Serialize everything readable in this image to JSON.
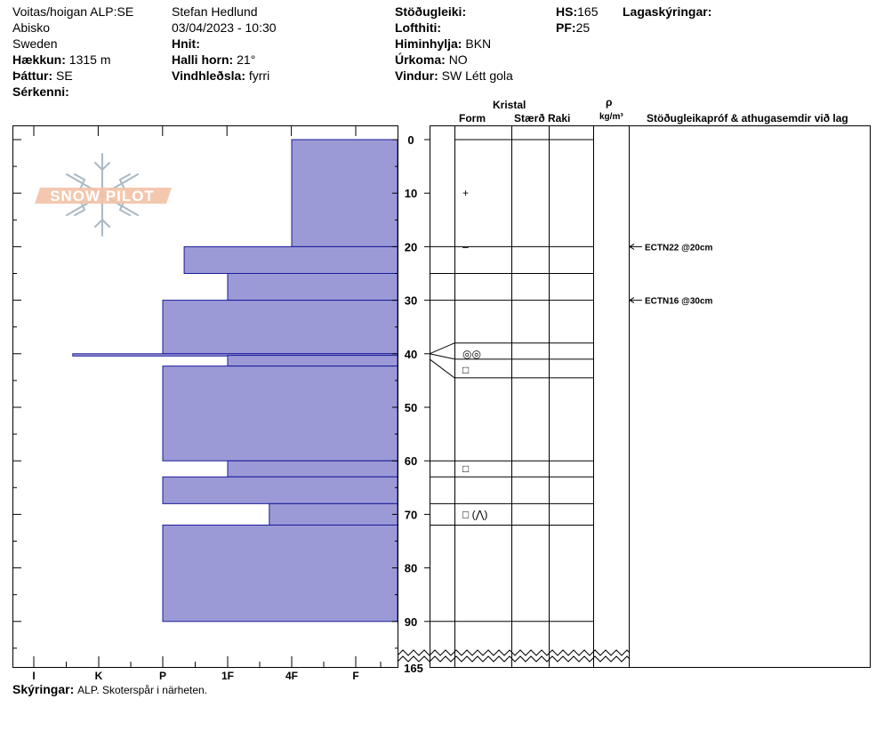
{
  "header": {
    "location": "Voitas/hoigan ALP:SE",
    "place": "Abisko",
    "country": "Sweden",
    "elevation_label": "Hækkun:",
    "elevation_value": "1315 m",
    "aspect_label": "Þáttur:",
    "aspect_value": "SE",
    "features_label": "Sérkenni:",
    "observer": "Stefan Hedlund",
    "datetime": "03/04/2023 - 10:30",
    "coords_label": "Hnit:",
    "slope_label": "Halli horn:",
    "slope_value": "21°",
    "wind_loading_label": "Vindhleðsla:",
    "wind_loading_value": "fyrri",
    "stability_label": "Stöðugleiki:",
    "air_temp_label": "Lofthiti:",
    "sky_label": "Himinhylja:",
    "sky_value": "BKN",
    "precip_label": "Úrkoma:",
    "precip_value": "NO",
    "wind_label": "Vindur:",
    "wind_value": "SW Létt gola",
    "hs_label": "HS:",
    "hs_value": "165",
    "pf_label": "PF:",
    "pf_value": "25",
    "layer_notes_label": "Lagaskýringar:"
  },
  "columns": {
    "crystal": "Kristal",
    "form": "Form",
    "size": "Stærð",
    "moisture": "Raki",
    "rho": "ρ",
    "density_unit": "kg/m³",
    "tests": "Stöðugleikapróf & athugasemdir við lag"
  },
  "logo": {
    "text": "SNOW PILOT"
  },
  "hardness_ticks": [
    "I",
    "K",
    "P",
    "1F",
    "4F",
    "F"
  ],
  "depth_ticks": [
    "0",
    "10",
    "20",
    "30",
    "40",
    "50",
    "60",
    "70",
    "80",
    "90"
  ],
  "depth_total": "165",
  "profile": {
    "layers": [
      {
        "top": 0,
        "bottom": 20,
        "hardness": "4F",
        "hardness_index": 4
      },
      {
        "top": 20,
        "bottom": 25,
        "hardness": "P+",
        "hardness_index": 2.33
      },
      {
        "top": 25,
        "bottom": 30,
        "hardness": "1F",
        "hardness_index": 3
      },
      {
        "top": 30,
        "bottom": 40,
        "hardness": "P",
        "hardness_index": 2
      },
      {
        "top": 40,
        "bottom": 40.3,
        "hardness": "I",
        "hardness_index": 0.6
      },
      {
        "top": 40.3,
        "bottom": 42.3,
        "hardness": "1F",
        "hardness_index": 3
      },
      {
        "top": 42.3,
        "bottom": 60,
        "hardness": "P",
        "hardness_index": 2
      },
      {
        "top": 60,
        "bottom": 63,
        "hardness": "1F",
        "hardness_index": 3
      },
      {
        "top": 63,
        "bottom": 68,
        "hardness": "P",
        "hardness_index": 2
      },
      {
        "top": 68,
        "bottom": 72,
        "hardness": "1F-4F",
        "hardness_index": 3.65
      },
      {
        "top": 72,
        "bottom": 90,
        "hardness": "P",
        "hardness_index": 2
      }
    ],
    "boundaries": [
      0,
      20,
      25,
      30,
      38,
      41,
      44.5,
      60,
      63,
      68,
      72,
      90
    ],
    "grain_symbols": [
      {
        "depth": 10,
        "text": "+"
      },
      {
        "depth": 20,
        "text": "–"
      },
      {
        "depth": 40,
        "text": "◎◎"
      },
      {
        "depth": 43,
        "text": "□"
      },
      {
        "depth": 61.5,
        "text": "□"
      },
      {
        "depth": 70,
        "text": "□ (⋀)"
      }
    ],
    "tests": [
      {
        "depth": 20,
        "text": "ECTN22 @20cm"
      },
      {
        "depth": 30,
        "text": "ECTN16 @30cm"
      }
    ]
  },
  "footer": {
    "notes_label": "Skýringar:",
    "notes_value": "ALP. Skoterspår i närheten."
  },
  "colors": {
    "layer_fill": "#9b9ad6",
    "layer_stroke": "#1a1a9a",
    "logo": "#f2c2a6"
  }
}
